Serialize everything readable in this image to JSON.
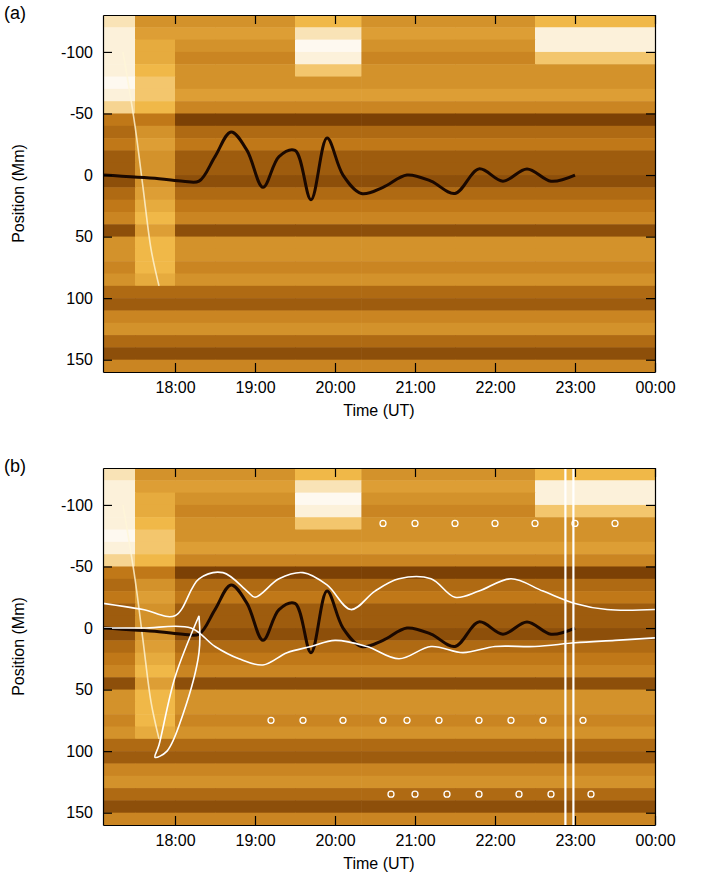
{
  "chart_data": [
    {
      "type": "heatmap",
      "label": "(a)",
      "xlabel": "Time (UT)",
      "ylabel": "Position (Mm)",
      "xlim": [
        17.1,
        24.0
      ],
      "ylim": [
        160,
        -130
      ],
      "xticks": [
        {
          "value": 18,
          "label": "18:00"
        },
        {
          "value": 19,
          "label": "19:00"
        },
        {
          "value": 20,
          "label": "20:00"
        },
        {
          "value": 21,
          "label": "21:00"
        },
        {
          "value": 22,
          "label": "22:00"
        },
        {
          "value": 23,
          "label": "23:00"
        },
        {
          "value": 24,
          "label": "00:00"
        }
      ],
      "yticks": [
        -100,
        -50,
        0,
        50,
        100,
        150
      ],
      "zlim": [
        0,
        1
      ],
      "x_bins": [
        17.1,
        17.5,
        18.0,
        18.5,
        19.5,
        20.33,
        21.5,
        22.5,
        24.0
      ],
      "y_bins": [
        -130,
        -120,
        -110,
        -100,
        -90,
        -80,
        -70,
        -60,
        -50,
        -40,
        -30,
        -20,
        -10,
        0,
        10,
        20,
        30,
        40,
        50,
        60,
        70,
        80,
        90,
        100,
        110,
        120,
        130,
        140,
        150,
        160
      ],
      "z": [
        [
          0.9,
          0.6,
          0.6,
          0.6,
          0.75,
          0.6,
          0.6,
          0.75
        ],
        [
          0.95,
          0.65,
          0.65,
          0.65,
          0.9,
          0.65,
          0.65,
          0.95
        ],
        [
          0.95,
          0.7,
          0.6,
          0.6,
          0.98,
          0.6,
          0.6,
          0.95
        ],
        [
          0.95,
          0.7,
          0.55,
          0.55,
          0.95,
          0.55,
          0.55,
          0.8
        ],
        [
          0.95,
          0.75,
          0.6,
          0.6,
          0.8,
          0.6,
          0.6,
          0.6
        ],
        [
          0.98,
          0.8,
          0.6,
          0.6,
          0.6,
          0.6,
          0.6,
          0.6
        ],
        [
          0.95,
          0.8,
          0.65,
          0.65,
          0.65,
          0.65,
          0.65,
          0.65
        ],
        [
          0.85,
          0.75,
          0.55,
          0.55,
          0.55,
          0.55,
          0.55,
          0.55
        ],
        [
          0.5,
          0.5,
          0.3,
          0.3,
          0.3,
          0.3,
          0.3,
          0.3
        ],
        [
          0.45,
          0.6,
          0.45,
          0.45,
          0.45,
          0.45,
          0.45,
          0.45
        ],
        [
          0.5,
          0.65,
          0.5,
          0.5,
          0.5,
          0.5,
          0.5,
          0.5
        ],
        [
          0.4,
          0.6,
          0.4,
          0.4,
          0.4,
          0.4,
          0.4,
          0.4
        ],
        [
          0.4,
          0.6,
          0.4,
          0.4,
          0.4,
          0.4,
          0.4,
          0.4
        ],
        [
          0.35,
          0.6,
          0.35,
          0.35,
          0.35,
          0.35,
          0.35,
          0.35
        ],
        [
          0.45,
          0.65,
          0.45,
          0.45,
          0.45,
          0.45,
          0.45,
          0.45
        ],
        [
          0.5,
          0.7,
          0.5,
          0.5,
          0.5,
          0.5,
          0.5,
          0.5
        ],
        [
          0.55,
          0.75,
          0.55,
          0.55,
          0.55,
          0.55,
          0.55,
          0.55
        ],
        [
          0.35,
          0.65,
          0.35,
          0.35,
          0.35,
          0.35,
          0.35,
          0.35
        ],
        [
          0.6,
          0.75,
          0.6,
          0.6,
          0.6,
          0.6,
          0.6,
          0.6
        ],
        [
          0.6,
          0.75,
          0.6,
          0.6,
          0.6,
          0.6,
          0.6,
          0.6
        ],
        [
          0.55,
          0.75,
          0.55,
          0.55,
          0.55,
          0.55,
          0.55,
          0.55
        ],
        [
          0.6,
          0.7,
          0.6,
          0.6,
          0.6,
          0.6,
          0.6,
          0.6
        ],
        [
          0.45,
          0.45,
          0.45,
          0.45,
          0.45,
          0.45,
          0.45,
          0.45
        ],
        [
          0.4,
          0.4,
          0.4,
          0.4,
          0.4,
          0.4,
          0.4,
          0.4
        ],
        [
          0.55,
          0.55,
          0.55,
          0.55,
          0.55,
          0.55,
          0.55,
          0.55
        ],
        [
          0.6,
          0.6,
          0.6,
          0.6,
          0.6,
          0.6,
          0.6,
          0.6
        ],
        [
          0.45,
          0.45,
          0.45,
          0.45,
          0.45,
          0.45,
          0.45,
          0.45
        ],
        [
          0.35,
          0.35,
          0.35,
          0.35,
          0.35,
          0.35,
          0.35,
          0.35
        ],
        [
          0.55,
          0.55,
          0.55,
          0.55,
          0.55,
          0.55,
          0.55,
          0.55
        ]
      ],
      "series": [
        {
          "type": "line",
          "color": "#fff6d8",
          "x": [
            17.35,
            17.5,
            17.6,
            17.7,
            17.8
          ],
          "values": [
            -100,
            -40,
            10,
            60,
            90
          ]
        },
        {
          "type": "line",
          "color": "#1a0800",
          "x": [
            17.1,
            17.8,
            18.1,
            18.3,
            18.5,
            18.7,
            18.9,
            19.1,
            19.3,
            19.5,
            19.7,
            19.9,
            20.1,
            20.33,
            20.6,
            20.9,
            21.2,
            21.5,
            21.8,
            22.1,
            22.4,
            22.7,
            23.0
          ],
          "values": [
            0,
            3,
            5,
            5,
            -15,
            -35,
            -20,
            10,
            -15,
            -20,
            20,
            -30,
            0,
            15,
            10,
            0,
            5,
            15,
            -5,
            5,
            -5,
            5,
            0
          ]
        }
      ]
    },
    {
      "type": "heatmap",
      "label": "(b)",
      "xlabel": "Time (UT)",
      "ylabel": "Position (Mm)",
      "xlim": [
        17.1,
        24.0
      ],
      "ylim": [
        160,
        -130
      ],
      "xticks": [
        {
          "value": 18,
          "label": "18:00"
        },
        {
          "value": 19,
          "label": "19:00"
        },
        {
          "value": 20,
          "label": "20:00"
        },
        {
          "value": 21,
          "label": "21:00"
        },
        {
          "value": 22,
          "label": "22:00"
        },
        {
          "value": 23,
          "label": "23:00"
        },
        {
          "value": 24,
          "label": "00:00"
        }
      ],
      "yticks": [
        -100,
        -50,
        0,
        50,
        100,
        150
      ],
      "zlim": [
        0,
        1
      ],
      "x_bins": [
        17.1,
        17.5,
        18.0,
        18.5,
        19.5,
        20.33,
        21.5,
        22.5,
        24.0
      ],
      "y_bins": [
        -130,
        -120,
        -110,
        -100,
        -90,
        -80,
        -70,
        -60,
        -50,
        -40,
        -30,
        -20,
        -10,
        0,
        10,
        20,
        30,
        40,
        50,
        60,
        70,
        80,
        90,
        100,
        110,
        120,
        130,
        140,
        150,
        160
      ],
      "z": [
        [
          0.9,
          0.6,
          0.6,
          0.6,
          0.75,
          0.6,
          0.6,
          0.75
        ],
        [
          0.95,
          0.65,
          0.65,
          0.65,
          0.9,
          0.65,
          0.65,
          0.95
        ],
        [
          0.95,
          0.7,
          0.6,
          0.6,
          0.98,
          0.6,
          0.6,
          0.95
        ],
        [
          0.95,
          0.7,
          0.55,
          0.55,
          0.95,
          0.55,
          0.55,
          0.8
        ],
        [
          0.95,
          0.75,
          0.6,
          0.6,
          0.8,
          0.6,
          0.6,
          0.6
        ],
        [
          0.98,
          0.8,
          0.6,
          0.6,
          0.6,
          0.6,
          0.6,
          0.6
        ],
        [
          0.95,
          0.8,
          0.65,
          0.65,
          0.65,
          0.65,
          0.65,
          0.65
        ],
        [
          0.85,
          0.75,
          0.55,
          0.55,
          0.55,
          0.55,
          0.55,
          0.55
        ],
        [
          0.5,
          0.5,
          0.3,
          0.3,
          0.3,
          0.3,
          0.3,
          0.3
        ],
        [
          0.45,
          0.6,
          0.45,
          0.45,
          0.45,
          0.45,
          0.45,
          0.45
        ],
        [
          0.5,
          0.65,
          0.5,
          0.5,
          0.5,
          0.5,
          0.5,
          0.5
        ],
        [
          0.4,
          0.6,
          0.4,
          0.4,
          0.4,
          0.4,
          0.4,
          0.4
        ],
        [
          0.4,
          0.6,
          0.4,
          0.4,
          0.4,
          0.4,
          0.4,
          0.4
        ],
        [
          0.35,
          0.6,
          0.35,
          0.35,
          0.35,
          0.35,
          0.35,
          0.35
        ],
        [
          0.45,
          0.65,
          0.45,
          0.45,
          0.45,
          0.45,
          0.45,
          0.45
        ],
        [
          0.5,
          0.7,
          0.5,
          0.5,
          0.5,
          0.5,
          0.5,
          0.5
        ],
        [
          0.55,
          0.75,
          0.55,
          0.55,
          0.55,
          0.55,
          0.55,
          0.55
        ],
        [
          0.35,
          0.65,
          0.35,
          0.35,
          0.35,
          0.35,
          0.35,
          0.35
        ],
        [
          0.6,
          0.75,
          0.6,
          0.6,
          0.6,
          0.6,
          0.6,
          0.6
        ],
        [
          0.6,
          0.75,
          0.6,
          0.6,
          0.6,
          0.6,
          0.6,
          0.6
        ],
        [
          0.55,
          0.75,
          0.55,
          0.55,
          0.55,
          0.55,
          0.55,
          0.55
        ],
        [
          0.6,
          0.7,
          0.6,
          0.6,
          0.6,
          0.6,
          0.6,
          0.6
        ],
        [
          0.45,
          0.45,
          0.45,
          0.45,
          0.45,
          0.45,
          0.45,
          0.45
        ],
        [
          0.4,
          0.4,
          0.4,
          0.4,
          0.4,
          0.4,
          0.4,
          0.4
        ],
        [
          0.55,
          0.55,
          0.55,
          0.55,
          0.55,
          0.55,
          0.55,
          0.55
        ],
        [
          0.6,
          0.6,
          0.6,
          0.6,
          0.6,
          0.6,
          0.6,
          0.6
        ],
        [
          0.45,
          0.45,
          0.45,
          0.45,
          0.45,
          0.45,
          0.45,
          0.45
        ],
        [
          0.35,
          0.35,
          0.35,
          0.35,
          0.35,
          0.35,
          0.35,
          0.35
        ],
        [
          0.55,
          0.55,
          0.55,
          0.55,
          0.55,
          0.55,
          0.55,
          0.55
        ]
      ],
      "series": [
        {
          "type": "line",
          "color": "#fff6d8",
          "x": [
            17.35,
            17.5,
            17.6,
            17.7,
            17.8
          ],
          "values": [
            -100,
            -40,
            10,
            60,
            90
          ]
        },
        {
          "type": "line",
          "color": "#1a0800",
          "x": [
            17.1,
            17.8,
            18.1,
            18.3,
            18.5,
            18.7,
            18.9,
            19.1,
            19.3,
            19.5,
            19.7,
            19.9,
            20.1,
            20.33,
            20.6,
            20.9,
            21.2,
            21.5,
            21.8,
            22.1,
            22.4,
            22.7,
            23.0
          ],
          "values": [
            0,
            3,
            5,
            5,
            -15,
            -35,
            -20,
            10,
            -15,
            -20,
            20,
            -30,
            0,
            15,
            10,
            0,
            5,
            15,
            -5,
            5,
            -5,
            5,
            0
          ]
        },
        {
          "type": "line",
          "color": "#ffffff",
          "x": [
            17.1,
            17.6,
            18.0,
            18.3,
            18.6,
            18.9,
            19.0,
            19.3,
            19.6,
            19.9,
            20.2,
            20.5,
            20.8,
            21.2,
            21.5,
            21.8,
            22.2,
            22.6,
            23.0,
            23.4,
            24.0
          ],
          "values": [
            -20,
            -15,
            -10,
            -40,
            -45,
            -30,
            -25,
            -40,
            -45,
            -35,
            -15,
            -30,
            -40,
            -40,
            -25,
            -30,
            -40,
            -30,
            -20,
            -15,
            -15
          ]
        },
        {
          "type": "line",
          "color": "#ffffff",
          "x": [
            17.1,
            17.6,
            18.2,
            18.5,
            18.8,
            19.1,
            19.4,
            19.7,
            20.0,
            20.4,
            20.8,
            21.2,
            21.6,
            22.0,
            22.5,
            23.0,
            23.5,
            24.0
          ],
          "values": [
            0,
            0,
            0,
            15,
            25,
            30,
            20,
            15,
            10,
            15,
            25,
            15,
            20,
            15,
            15,
            12,
            10,
            8
          ]
        },
        {
          "type": "line",
          "color": "#ffffff",
          "x": [
            18.3,
            18.0,
            17.8,
            17.75,
            17.9,
            18.1,
            18.3,
            18.3
          ],
          "values": [
            -10,
            40,
            95,
            105,
            100,
            70,
            20,
            -10
          ]
        },
        {
          "type": "scatter",
          "color": "#ffffff",
          "marker": "circle",
          "x": [
            19.2,
            19.6,
            20.1,
            20.6,
            20.9,
            21.3,
            21.8,
            22.2,
            22.6,
            23.1,
            20.7,
            21.0,
            21.4,
            21.8,
            22.3,
            22.7,
            23.2,
            20.6,
            21.0,
            21.5,
            22.0,
            22.5,
            23.0,
            23.5
          ],
          "values": [
            75,
            75,
            75,
            75,
            75,
            75,
            75,
            75,
            75,
            75,
            135,
            135,
            135,
            135,
            135,
            135,
            135,
            -85,
            -85,
            -85,
            -85,
            -85,
            -85,
            -85
          ]
        }
      ],
      "vlines": [
        22.88,
        22.98
      ]
    }
  ]
}
